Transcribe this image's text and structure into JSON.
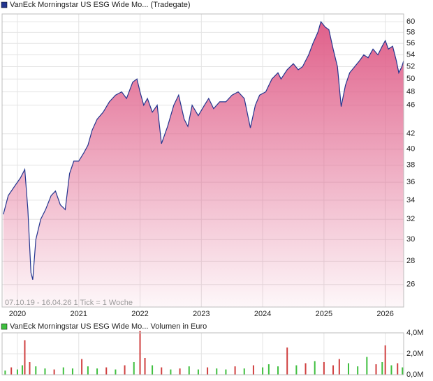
{
  "chart_data": [
    {
      "type": "line",
      "title": "VanEck Morningstar US ESG Wide Mo... (Tradegate)",
      "subtitle": "07.10.19 - 16.04.26   1 Tick = 1 Woche",
      "log_scale": true,
      "grid": true,
      "color": "#23358f",
      "fill_color": "#e0608a",
      "xlim": [
        2019.75,
        2026.3
      ],
      "xticks": [
        2020,
        2021,
        2022,
        2023,
        2024,
        2025,
        2026
      ],
      "ylim": [
        24.2,
        61.5
      ],
      "yticks": [
        26,
        28,
        30,
        32,
        34,
        36,
        38,
        40,
        42,
        46,
        48,
        50,
        52,
        54,
        56,
        58,
        60
      ],
      "x": [
        2019.77,
        2019.85,
        2019.95,
        2020.05,
        2020.12,
        2020.17,
        2020.22,
        2020.25,
        2020.3,
        2020.38,
        2020.46,
        2020.55,
        2020.62,
        2020.7,
        2020.78,
        2020.85,
        2020.92,
        2021.0,
        2021.08,
        2021.15,
        2021.22,
        2021.3,
        2021.4,
        2021.5,
        2021.6,
        2021.7,
        2021.78,
        2021.88,
        2021.95,
        2022.0,
        2022.06,
        2022.12,
        2022.2,
        2022.28,
        2022.35,
        2022.45,
        2022.55,
        2022.63,
        2022.72,
        2022.78,
        2022.85,
        2022.95,
        2023.05,
        2023.12,
        2023.2,
        2023.3,
        2023.4,
        2023.5,
        2023.6,
        2023.7,
        2023.8,
        2023.88,
        2023.95,
        2024.05,
        2024.15,
        2024.25,
        2024.3,
        2024.4,
        2024.5,
        2024.58,
        2024.65,
        2024.75,
        2024.82,
        2024.9,
        2024.95,
        2025.02,
        2025.08,
        2025.15,
        2025.22,
        2025.28,
        2025.35,
        2025.42,
        2025.5,
        2025.58,
        2025.65,
        2025.72,
        2025.8,
        2025.88,
        2025.95,
        2026.0,
        2026.05,
        2026.12,
        2026.18,
        2026.22,
        2026.27,
        2026.3
      ],
      "values": [
        32.5,
        34.5,
        35.5,
        36.5,
        37.5,
        33,
        27,
        26.4,
        30,
        32,
        33,
        34.5,
        35,
        33.5,
        33,
        37,
        38.5,
        38.5,
        39.5,
        40.5,
        42.5,
        44,
        45,
        46.5,
        47.5,
        48,
        47,
        49.5,
        50,
        48,
        46,
        47,
        45,
        46,
        40.7,
        43,
        46,
        47.5,
        44,
        43,
        46,
        44.5,
        46,
        47,
        45.5,
        46.5,
        46.5,
        47.5,
        48,
        47,
        42.8,
        46,
        47.5,
        48,
        50,
        51,
        50,
        51.5,
        52.5,
        51.5,
        52,
        54,
        56,
        58,
        60,
        59,
        58.5,
        55,
        52,
        45.8,
        49,
        51,
        52,
        53,
        54,
        53.5,
        55,
        54,
        55.5,
        56.5,
        55,
        55.5,
        53,
        51,
        52,
        53
      ]
    },
    {
      "type": "bar",
      "title": "VanEck Morningstar US ESG Wide Mo... Volumen in Euro",
      "grid": true,
      "xlim": [
        2019.75,
        2026.3
      ],
      "xticks": [
        2020,
        2021,
        2022,
        2023,
        2024,
        2025,
        2026
      ],
      "ylim": [
        0,
        4000000
      ],
      "yticks": [
        {
          "value": 0,
          "label": "0,0M"
        },
        {
          "value": 2000000,
          "label": "2,0M"
        },
        {
          "value": 4000000,
          "label": "4,0M"
        }
      ],
      "x": [
        2019.8,
        2019.9,
        2020.0,
        2020.08,
        2020.12,
        2020.2,
        2020.3,
        2020.45,
        2020.6,
        2020.75,
        2020.9,
        2021.05,
        2021.15,
        2021.3,
        2021.45,
        2021.6,
        2021.75,
        2021.9,
        2022.0,
        2022.08,
        2022.2,
        2022.35,
        2022.5,
        2022.65,
        2022.8,
        2022.95,
        2023.1,
        2023.25,
        2023.4,
        2023.55,
        2023.7,
        2023.85,
        2024.0,
        2024.1,
        2024.25,
        2024.4,
        2024.55,
        2024.7,
        2024.85,
        2025.0,
        2025.15,
        2025.25,
        2025.4,
        2025.55,
        2025.7,
        2025.85,
        2025.95,
        2026.0,
        2026.1,
        2026.2,
        2026.28
      ],
      "values": [
        400000,
        700000,
        500000,
        900000,
        3300000,
        1200000,
        800000,
        600000,
        500000,
        700000,
        600000,
        1500000,
        800000,
        600000,
        700000,
        500000,
        900000,
        1200000,
        4200000,
        1600000,
        900000,
        700000,
        500000,
        600000,
        800000,
        500000,
        700000,
        600000,
        500000,
        800000,
        600000,
        900000,
        700000,
        1000000,
        800000,
        2600000,
        900000,
        1100000,
        1300000,
        1200000,
        900000,
        1500000,
        1100000,
        800000,
        1700000,
        1000000,
        1200000,
        2800000,
        900000,
        1100000,
        700000
      ],
      "colors": [
        "#3fbf3f",
        "#d04040",
        "#3fbf3f",
        "#3fbf3f",
        "#d04040",
        "#d04040",
        "#3fbf3f",
        "#3fbf3f",
        "#d04040",
        "#3fbf3f",
        "#3fbf3f",
        "#d04040",
        "#3fbf3f",
        "#3fbf3f",
        "#d04040",
        "#3fbf3f",
        "#d04040",
        "#3fbf3f",
        "#d04040",
        "#d04040",
        "#3fbf3f",
        "#d04040",
        "#3fbf3f",
        "#d04040",
        "#3fbf3f",
        "#3fbf3f",
        "#d04040",
        "#3fbf3f",
        "#3fbf3f",
        "#d04040",
        "#3fbf3f",
        "#d04040",
        "#3fbf3f",
        "#3fbf3f",
        "#3fbf3f",
        "#d04040",
        "#3fbf3f",
        "#d04040",
        "#3fbf3f",
        "#d04040",
        "#d04040",
        "#d04040",
        "#3fbf3f",
        "#3fbf3f",
        "#3fbf3f",
        "#d04040",
        "#3fbf3f",
        "#d04040",
        "#3fbf3f",
        "#d04040",
        "#3fbf3f"
      ]
    }
  ]
}
